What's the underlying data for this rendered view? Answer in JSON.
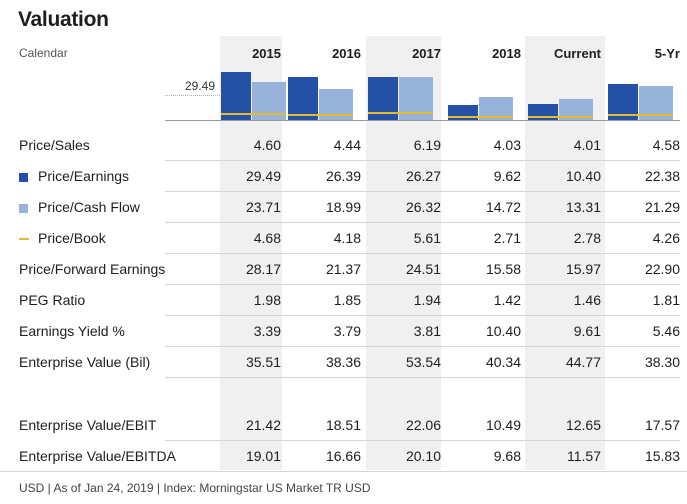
{
  "title": "Valuation",
  "header": {
    "calendar_label": "Calendar",
    "columns": [
      "2015",
      "2016",
      "2017",
      "2018",
      "Current",
      "5-Yr"
    ]
  },
  "chart": {
    "reference_label": "29.49",
    "colors": {
      "price_earnings": "#2451a6",
      "price_cash_flow": "#98b3da",
      "price_book": "#e8b92c"
    },
    "price_earnings": [
      29.49,
      26.39,
      26.27,
      9.62,
      10.4,
      22.38
    ],
    "price_cash_flow": [
      23.71,
      18.99,
      26.32,
      14.72,
      13.31,
      21.29
    ],
    "price_book": [
      4.68,
      4.18,
      5.61,
      2.71,
      2.78,
      4.26
    ]
  },
  "rows": [
    {
      "label": "Price/Sales",
      "values": [
        "4.60",
        "4.44",
        "6.19",
        "4.03",
        "4.01",
        "4.58"
      ]
    },
    {
      "label": "Price/Earnings",
      "legend": "pe",
      "values": [
        "29.49",
        "26.39",
        "26.27",
        "9.62",
        "10.40",
        "22.38"
      ]
    },
    {
      "label": "Price/Cash Flow",
      "legend": "pcf",
      "values": [
        "23.71",
        "18.99",
        "26.32",
        "14.72",
        "13.31",
        "21.29"
      ]
    },
    {
      "label": "Price/Book",
      "legend": "pb",
      "values": [
        "4.68",
        "4.18",
        "5.61",
        "2.71",
        "2.78",
        "4.26"
      ]
    },
    {
      "label": "Price/Forward Earnings",
      "values": [
        "28.17",
        "21.37",
        "24.51",
        "15.58",
        "15.97",
        "22.90"
      ]
    },
    {
      "label": "PEG Ratio",
      "values": [
        "1.98",
        "1.85",
        "1.94",
        "1.42",
        "1.46",
        "1.81"
      ]
    },
    {
      "label": "Earnings Yield %",
      "values": [
        "3.39",
        "3.79",
        "3.81",
        "10.40",
        "9.61",
        "5.46"
      ]
    },
    {
      "label": "Enterprise Value (Bil)",
      "values": [
        "35.51",
        "38.36",
        "53.54",
        "40.34",
        "44.77",
        "38.30"
      ]
    },
    {
      "label": "Enterprise Value/EBIT",
      "values": [
        "21.42",
        "18.51",
        "22.06",
        "10.49",
        "12.65",
        "17.57"
      ]
    },
    {
      "label": "Enterprise Value/EBITDA",
      "values": [
        "19.01",
        "16.66",
        "20.10",
        "9.68",
        "11.57",
        "15.83"
      ]
    }
  ],
  "footer": "USD | As of Jan 24, 2019 | Index: Morningstar US Market TR USD"
}
